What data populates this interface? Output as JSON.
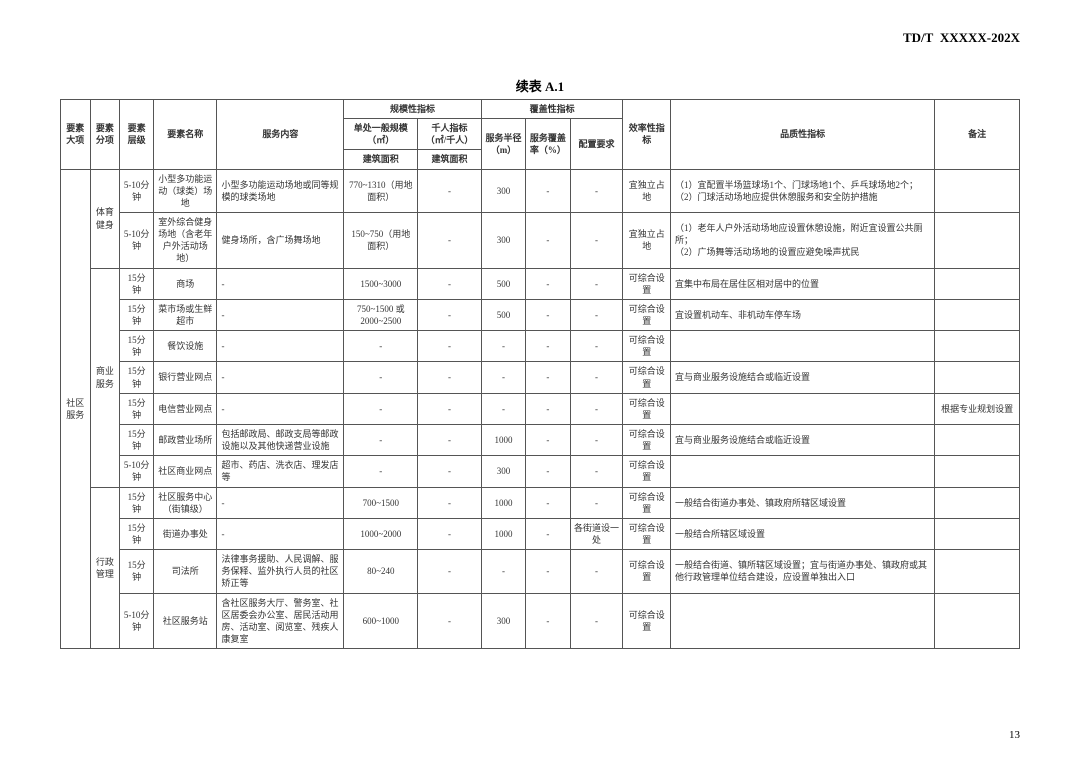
{
  "doc_id": "TD/T  XXXXX-202X",
  "caption": "续表 A.1",
  "page_number": "13",
  "headers": {
    "h_scale": "规模性指标",
    "h_cover": "覆盖性指标",
    "h_major": "要素大项",
    "h_sub": "要素分项",
    "h_level": "要素层级",
    "h_name": "要素名称",
    "h_service": "服务内容",
    "h_unit_scale": "单处一般规模（㎡）",
    "h_per_k": "千人指标（㎡/千人）",
    "h_radius": "服务半径（m）",
    "h_rate": "服务覆盖率（%）",
    "h_config": "配置要求",
    "h_eff": "效率性指标",
    "h_quality": "品质性指标",
    "h_remark": "备注",
    "h_barea": "建筑面积",
    "h_barea2": "建筑面积"
  },
  "major": "社区服务",
  "sub_sport": "体育健身",
  "sub_biz": "商业服务",
  "sub_admin": "行政管理",
  "rows": [
    {
      "lvl": "5-10分钟",
      "name": "小型多功能运动（球类）场地",
      "svc": "小型多功能运动场地或同等规模的球类场地",
      "scale": "770~1310（用地面积）",
      "perk": "-",
      "radius": "300",
      "rate": "-",
      "cfg": "-",
      "eff": "宜独立占地",
      "qual": "（1）宜配置半场篮球场1个、门球场地1个、乒乓球场地2个；\n（2）门球活动场地应提供休憩服务和安全防护措施",
      "rmk": ""
    },
    {
      "lvl": "5-10分钟",
      "name": "室外综合健身场地（含老年户外活动场地）",
      "svc": "健身场所，含广场舞场地",
      "scale": "150~750（用地面积）",
      "perk": "-",
      "radius": "300",
      "rate": "-",
      "cfg": "-",
      "eff": "宜独立占地",
      "qual": "（1）老年人户外活动场地应设置休憩设施，附近宜设置公共厕所；\n（2）广场舞等活动场地的设置应避免噪声扰民",
      "rmk": ""
    },
    {
      "lvl": "15分钟",
      "name": "商场",
      "svc": "-",
      "scale": "1500~3000",
      "perk": "-",
      "radius": "500",
      "rate": "-",
      "cfg": "-",
      "eff": "可综合设置",
      "qual": "宜集中布局在居住区相对居中的位置",
      "rmk": ""
    },
    {
      "lvl": "15分钟",
      "name": "菜市场或生鲜超市",
      "svc": "-",
      "scale": "750~1500 或 2000~2500",
      "perk": "-",
      "radius": "500",
      "rate": "-",
      "cfg": "-",
      "eff": "可综合设置",
      "qual": "宜设置机动车、非机动车停车场",
      "rmk": ""
    },
    {
      "lvl": "15分钟",
      "name": "餐饮设施",
      "svc": "-",
      "scale": "-",
      "perk": "-",
      "radius": "-",
      "rate": "-",
      "cfg": "-",
      "eff": "可综合设置",
      "qual": "",
      "rmk": ""
    },
    {
      "lvl": "15分钟",
      "name": "银行营业网点",
      "svc": "-",
      "scale": "-",
      "perk": "-",
      "radius": "-",
      "rate": "-",
      "cfg": "-",
      "eff": "可综合设置",
      "qual": "宜与商业服务设施结合或临近设置",
      "rmk": ""
    },
    {
      "lvl": "15分钟",
      "name": "电信营业网点",
      "svc": "-",
      "scale": "-",
      "perk": "-",
      "radius": "-",
      "rate": "-",
      "cfg": "-",
      "eff": "可综合设置",
      "qual": "",
      "rmk": "根据专业规划设置"
    },
    {
      "lvl": "15分钟",
      "name": "邮政营业场所",
      "svc": "包括邮政局、邮政支局等邮政设施以及其他快递营业设施",
      "scale": "-",
      "perk": "-",
      "radius": "1000",
      "rate": "-",
      "cfg": "-",
      "eff": "可综合设置",
      "qual": "宜与商业服务设施结合或临近设置",
      "rmk": ""
    },
    {
      "lvl": "5-10分钟",
      "name": "社区商业网点",
      "svc": "超市、药店、洗衣店、理发店等",
      "scale": "-",
      "perk": "-",
      "radius": "300",
      "rate": "-",
      "cfg": "-",
      "eff": "可综合设置",
      "qual": "",
      "rmk": ""
    },
    {
      "lvl": "15分钟",
      "name": "社区服务中心（街镇级）",
      "svc": "-",
      "scale": "700~1500",
      "perk": "-",
      "radius": "1000",
      "rate": "-",
      "cfg": "-",
      "eff": "可综合设置",
      "qual": "一般结合街道办事处、镇政府所辖区域设置",
      "rmk": ""
    },
    {
      "lvl": "15分钟",
      "name": "街道办事处",
      "svc": "-",
      "scale": "1000~2000",
      "perk": "-",
      "radius": "1000",
      "rate": "-",
      "cfg": "各街道设一处",
      "eff": "可综合设置",
      "qual": "一般结合所辖区域设置",
      "rmk": ""
    },
    {
      "lvl": "15分钟",
      "name": "司法所",
      "svc": "法律事务援助、人民调解、服务保释、监外执行人员的社区矫正等",
      "scale": "80~240",
      "perk": "-",
      "radius": "-",
      "rate": "-",
      "cfg": "-",
      "eff": "可综合设置",
      "qual": "一般结合街道、镇所辖区域设置；宜与街道办事处、镇政府或其他行政管理单位结合建设，应设置单独出入口",
      "rmk": ""
    },
    {
      "lvl": "5-10分钟",
      "name": "社区服务站",
      "svc": "含社区服务大厅、警务室、社区居委会办公室、居民活动用房、活动室、阅览室、残疾人康复室",
      "scale": "600~1000",
      "perk": "-",
      "radius": "300",
      "rate": "-",
      "cfg": "-",
      "eff": "可综合设置",
      "qual": "",
      "rmk": ""
    }
  ]
}
